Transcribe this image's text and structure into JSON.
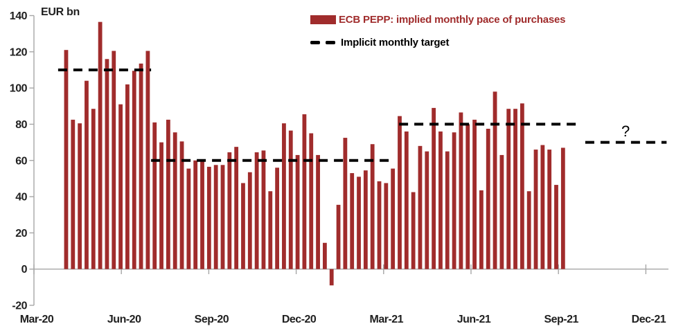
{
  "axis": {
    "unit_label": "EUR bn",
    "y_tick_labels": [
      "140",
      "120",
      "100",
      "80",
      "60",
      "40",
      "20",
      "0",
      "-20"
    ],
    "x_tick_labels": [
      "Mar-20",
      "Jun-20",
      "Sep-20",
      "Dec-20",
      "Mar-21",
      "Jun-21",
      "Sep-21",
      "Dec-21"
    ]
  },
  "legend": {
    "series_label": "ECB PEPP: implied monthly pace of purchases",
    "target_label": "Implicit monthly target"
  },
  "annotation": {
    "text": "?"
  },
  "colors": {
    "bar_red": "#A02C2C",
    "target_black": "#000000",
    "axis_gray": "#A6A6A6",
    "label_dark": "#1f1f1f"
  },
  "chart_data": {
    "type": "bar",
    "title": "",
    "ylabel": "EUR bn",
    "ylim": [
      -20,
      140
    ],
    "ytick_step": 20,
    "grid": false,
    "legend_position": "top-center",
    "x_axis": {
      "tick_labels": [
        "Mar-20",
        "Jun-20",
        "Sep-20",
        "Dec-20",
        "Mar-21",
        "Jun-21",
        "Sep-21",
        "Dec-21"
      ],
      "months_per_tick": 3,
      "total_months": 21.8
    },
    "series": [
      {
        "name": "ECB PEPP: implied monthly pace of purchases",
        "frequency": "weekly",
        "start_month_offset": 1.105,
        "week_step_months": 0.2336,
        "values": [
          121,
          82.5,
          80.5,
          104,
          88.5,
          136.5,
          116,
          120.5,
          91,
          102,
          109.5,
          113.5,
          120.5,
          81,
          70,
          82.5,
          75.5,
          70.5,
          55.5,
          60,
          59.5,
          56.5,
          57.5,
          57.5,
          64.5,
          67.5,
          47.5,
          53.5,
          64.5,
          65.5,
          43,
          56,
          80.5,
          76.5,
          63,
          85.5,
          75,
          63,
          14.5,
          -9,
          35.5,
          72.5,
          53,
          51,
          54.5,
          69,
          48.5,
          47.5,
          55.5,
          84.5,
          76,
          42.5,
          68,
          65,
          89,
          76,
          65,
          75.5,
          86.5,
          80,
          82.5,
          43.5,
          77.5,
          98,
          63,
          88.5,
          88.5,
          91.5,
          43,
          66,
          68.5,
          66,
          46.5,
          67
        ]
      }
    ],
    "targets": [
      {
        "name": "Implicit monthly target",
        "value": 110,
        "start_month": 0.83,
        "end_month": 4.02
      },
      {
        "name": "Implicit monthly target",
        "value": 60,
        "start_month": 4.02,
        "end_month": 12.34
      },
      {
        "name": "Implicit monthly target",
        "value": 80,
        "start_month": 12.53,
        "end_month": 18.76
      },
      {
        "name": "Implicit monthly target",
        "value": 70,
        "start_month": 18.92,
        "end_month": 21.71
      }
    ],
    "annotation": {
      "text": "?",
      "month": 20.3,
      "value": 74
    }
  }
}
